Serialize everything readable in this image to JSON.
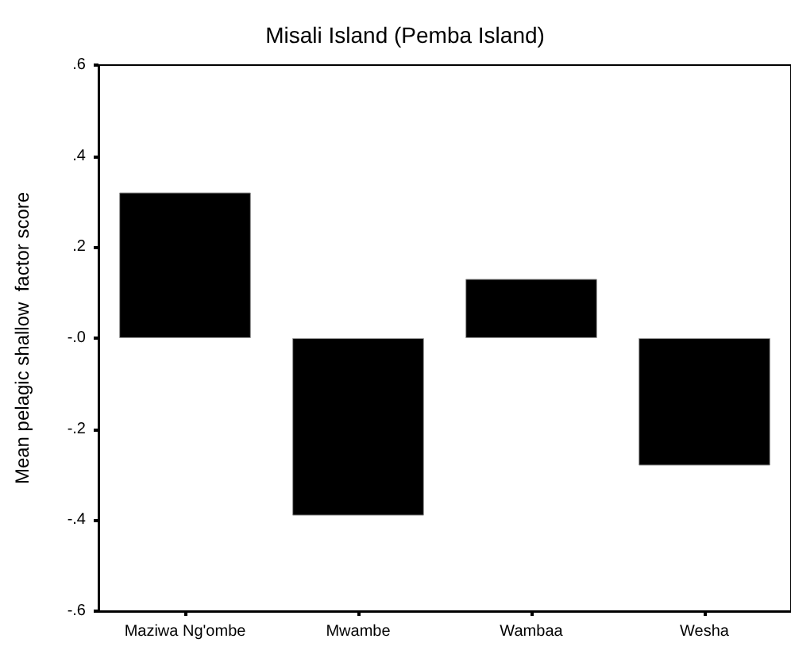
{
  "chart_data": {
    "type": "bar",
    "title": "Misali Island (Pemba Island)",
    "ylabel": "Mean pelagic shallow  factor score",
    "categories": [
      "Maziwa Ng'ombe",
      "Mwambe",
      "Wambaa",
      "Wesha"
    ],
    "values": [
      0.32,
      -0.39,
      0.13,
      -0.28
    ],
    "color": "#000000",
    "ylim": [
      -0.6,
      0.6
    ],
    "yticks": [
      {
        "value": -0.6,
        "label": "-.6"
      },
      {
        "value": -0.4,
        "label": "-.4"
      },
      {
        "value": -0.2,
        "label": "-.2"
      },
      {
        "value": 0,
        "label": "-.0"
      },
      {
        "value": 0.2,
        "label": ".2"
      },
      {
        "value": 0.4,
        "label": ".4"
      },
      {
        "value": 0.6,
        "label": ".6"
      }
    ],
    "grid": false
  }
}
